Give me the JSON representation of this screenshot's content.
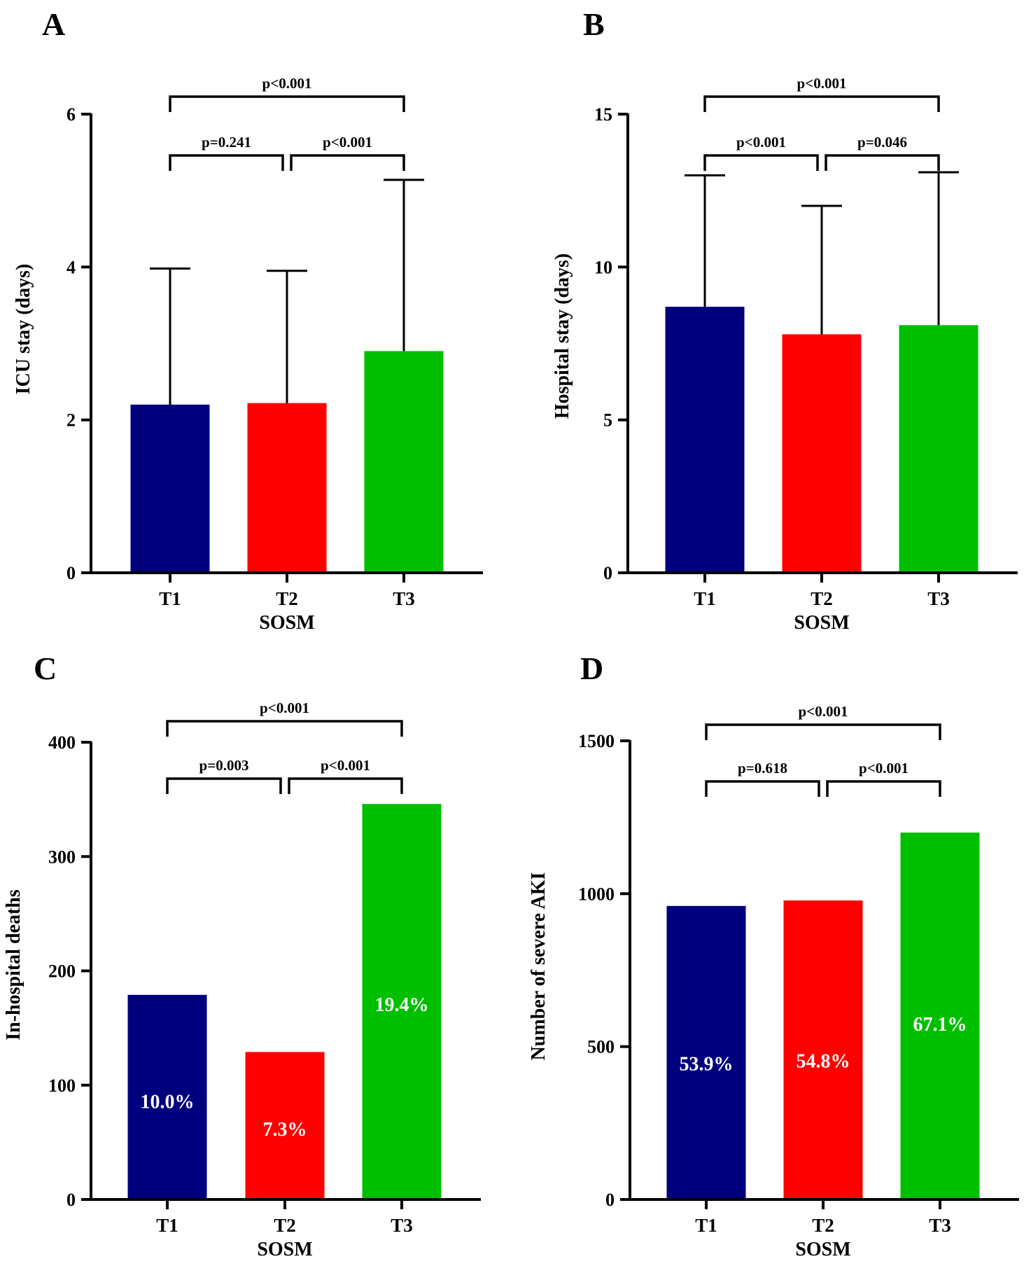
{
  "chart_data": [
    {
      "panel": "A",
      "type": "bar",
      "categories": [
        "T1",
        "T2",
        "T3"
      ],
      "values": [
        2.2,
        2.22,
        2.9
      ],
      "errors_upper": [
        3.98,
        3.95,
        5.14
      ],
      "colors": [
        "#00007F",
        "#FF0000",
        "#00BF00"
      ],
      "xlabel": "SOSM",
      "ylabel": "ICU stay (days)",
      "ylim": [
        0,
        6
      ],
      "yticks": [
        0,
        2,
        4,
        6
      ],
      "data_labels": [],
      "comparisons": [
        {
          "from": 0,
          "to": 1,
          "label": "p=0.241",
          "level": 1
        },
        {
          "from": 1,
          "to": 2,
          "label": "p<0.001",
          "level": 1
        },
        {
          "from": 0,
          "to": 2,
          "label": "p<0.001",
          "level": 2
        }
      ]
    },
    {
      "panel": "B",
      "type": "bar",
      "categories": [
        "T1",
        "T2",
        "T3"
      ],
      "values": [
        8.7,
        7.8,
        8.1
      ],
      "errors_upper": [
        13.0,
        12.0,
        13.1
      ],
      "colors": [
        "#00007F",
        "#FF0000",
        "#00BF00"
      ],
      "xlabel": "SOSM",
      "ylabel": "Hospital stay (days)",
      "ylim": [
        0,
        15
      ],
      "yticks": [
        0,
        5,
        10,
        15
      ],
      "data_labels": [],
      "comparisons": [
        {
          "from": 0,
          "to": 1,
          "label": "p<0.001",
          "level": 1
        },
        {
          "from": 1,
          "to": 2,
          "label": "p=0.046",
          "level": 1
        },
        {
          "from": 0,
          "to": 2,
          "label": "p<0.001",
          "level": 2
        }
      ]
    },
    {
      "panel": "C",
      "type": "bar",
      "categories": [
        "T1",
        "T2",
        "T3"
      ],
      "values": [
        179,
        129,
        346
      ],
      "errors_upper": [],
      "colors": [
        "#00007F",
        "#FF0000",
        "#00BF00"
      ],
      "xlabel": "SOSM",
      "ylabel": "In-hospital deaths",
      "ylim": [
        0,
        400
      ],
      "yticks": [
        0,
        100,
        200,
        300,
        400
      ],
      "data_labels": [
        "10.0%",
        "7.3%",
        "19.4%"
      ],
      "data_label_values": [
        86,
        62,
        171
      ],
      "comparisons": [
        {
          "from": 0,
          "to": 1,
          "label": "p=0.003",
          "level": 1
        },
        {
          "from": 1,
          "to": 2,
          "label": "p<0.001",
          "level": 1
        },
        {
          "from": 0,
          "to": 2,
          "label": "p<0.001",
          "level": 2
        }
      ]
    },
    {
      "panel": "D",
      "type": "bar",
      "categories": [
        "T1",
        "T2",
        "T3"
      ],
      "values": [
        960,
        978,
        1200
      ],
      "errors_upper": [],
      "colors": [
        "#00007F",
        "#FF0000",
        "#00BF00"
      ],
      "xlabel": "SOSM",
      "ylabel": "Number of severe AKI",
      "ylim": [
        0,
        1500
      ],
      "yticks": [
        0,
        500,
        1000,
        1500
      ],
      "data_labels": [
        "53.9%",
        "54.8%",
        "67.1%"
      ],
      "data_label_values": [
        445,
        455,
        575
      ],
      "comparisons": [
        {
          "from": 0,
          "to": 1,
          "label": "p=0.618",
          "level": 1
        },
        {
          "from": 1,
          "to": 2,
          "label": "p<0.001",
          "level": 1
        },
        {
          "from": 0,
          "to": 2,
          "label": "p<0.001",
          "level": 2
        }
      ]
    }
  ]
}
